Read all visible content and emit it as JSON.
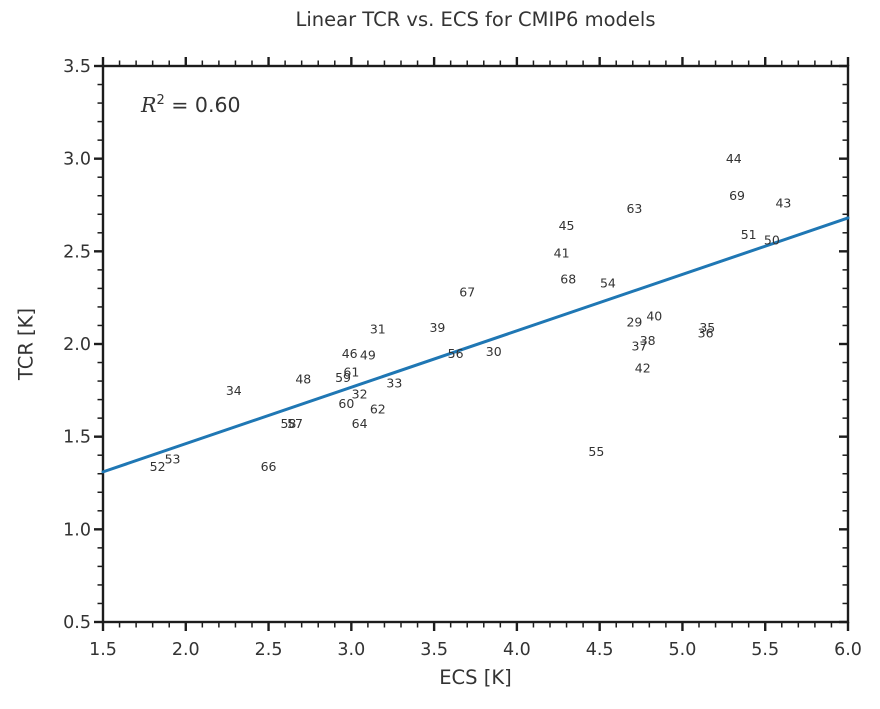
{
  "colors": {
    "line": "#1f77b4",
    "text": "#333333",
    "axis": "#1c1c1c",
    "background": "#ffffff"
  },
  "chart_data": {
    "type": "scatter",
    "title": "Linear TCR vs. ECS for CMIP6 models",
    "xlabel": "ECS [K]",
    "ylabel": "TCR [K]",
    "xlim": [
      1.5,
      6.0
    ],
    "ylim": [
      0.5,
      3.5
    ],
    "x_ticks": [
      1.5,
      2.0,
      2.5,
      3.0,
      3.5,
      4.0,
      4.5,
      5.0,
      5.5,
      6.0
    ],
    "y_ticks": [
      0.5,
      1.0,
      1.5,
      2.0,
      2.5,
      3.0,
      3.5
    ],
    "minor_tick_step": 0.1,
    "tick_label_decimals": 1,
    "grid": false,
    "legend": null,
    "marker_style": "numeric-model-labels",
    "r2": {
      "var": "R",
      "exp": "2",
      "eq": " = 0.60"
    },
    "regression_line": {
      "x0": 1.5,
      "y0": 1.31,
      "x1": 6.0,
      "y1": 2.68,
      "color": "#1f77b4"
    },
    "points": [
      {
        "label": "29",
        "x": 4.71,
        "y": 2.12
      },
      {
        "label": "30",
        "x": 3.86,
        "y": 1.96
      },
      {
        "label": "31",
        "x": 3.16,
        "y": 2.08
      },
      {
        "label": "32",
        "x": 3.05,
        "y": 1.73
      },
      {
        "label": "33",
        "x": 3.26,
        "y": 1.79
      },
      {
        "label": "34",
        "x": 2.29,
        "y": 1.75
      },
      {
        "label": "35",
        "x": 5.15,
        "y": 2.09
      },
      {
        "label": "36",
        "x": 5.14,
        "y": 2.06
      },
      {
        "label": "37",
        "x": 4.74,
        "y": 1.99
      },
      {
        "label": "38",
        "x": 4.79,
        "y": 2.02
      },
      {
        "label": "39",
        "x": 3.52,
        "y": 2.09
      },
      {
        "label": "40",
        "x": 4.83,
        "y": 2.15
      },
      {
        "label": "41",
        "x": 4.27,
        "y": 2.49
      },
      {
        "label": "42",
        "x": 4.76,
        "y": 1.87
      },
      {
        "label": "43",
        "x": 5.61,
        "y": 2.76
      },
      {
        "label": "44",
        "x": 5.31,
        "y": 3.0
      },
      {
        "label": "45",
        "x": 4.3,
        "y": 2.64
      },
      {
        "label": "46",
        "x": 2.99,
        "y": 1.95
      },
      {
        "label": "48",
        "x": 2.71,
        "y": 1.81
      },
      {
        "label": "49",
        "x": 3.1,
        "y": 1.94
      },
      {
        "label": "50",
        "x": 5.54,
        "y": 2.56
      },
      {
        "label": "51",
        "x": 5.4,
        "y": 2.59
      },
      {
        "label": "52",
        "x": 1.83,
        "y": 1.34
      },
      {
        "label": "53",
        "x": 1.92,
        "y": 1.38
      },
      {
        "label": "54",
        "x": 4.55,
        "y": 2.33
      },
      {
        "label": "55",
        "x": 4.48,
        "y": 1.42
      },
      {
        "label": "56",
        "x": 3.63,
        "y": 1.95
      },
      {
        "label": "57",
        "x": 2.66,
        "y": 1.57
      },
      {
        "label": "58",
        "x": 2.62,
        "y": 1.57
      },
      {
        "label": "59",
        "x": 2.95,
        "y": 1.82
      },
      {
        "label": "60",
        "x": 2.97,
        "y": 1.68
      },
      {
        "label": "61",
        "x": 3.0,
        "y": 1.85
      },
      {
        "label": "62",
        "x": 3.16,
        "y": 1.65
      },
      {
        "label": "63",
        "x": 4.71,
        "y": 2.73
      },
      {
        "label": "64",
        "x": 3.05,
        "y": 1.57
      },
      {
        "label": "66",
        "x": 2.5,
        "y": 1.34
      },
      {
        "label": "67",
        "x": 3.7,
        "y": 2.28
      },
      {
        "label": "68",
        "x": 4.31,
        "y": 2.35
      },
      {
        "label": "69",
        "x": 5.33,
        "y": 2.8
      }
    ]
  }
}
